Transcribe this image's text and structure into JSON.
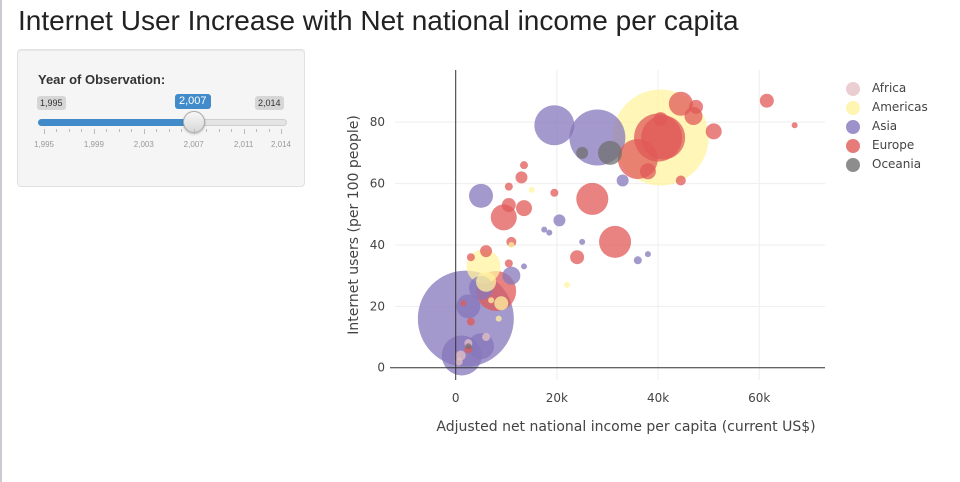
{
  "page": {
    "title": "Internet User Increase with Net national income per capita"
  },
  "slider": {
    "label": "Year of Observation:",
    "min_label": "1,995",
    "max_label": "2,014",
    "current_label": "2,007",
    "min": 1995,
    "max": 2014,
    "value": 2007,
    "tick_labels": [
      {
        "label": "1,995",
        "value": 1995
      },
      {
        "label": "1,999",
        "value": 1999
      },
      {
        "label": "2,003",
        "value": 2003
      },
      {
        "label": "2,007",
        "value": 2007
      },
      {
        "label": "2,011",
        "value": 2011
      },
      {
        "label": "2,014",
        "value": 2014
      }
    ],
    "accent_color": "#428bca"
  },
  "chart_data": {
    "type": "scatter",
    "xlabel": "Adjusted net national income per capita (current US$)",
    "ylabel": "Internet users (per 100 people)",
    "xlim": [
      -12000,
      73000
    ],
    "ylim": [
      -4,
      97
    ],
    "x_ticks": [
      {
        "value": 0,
        "label": "0"
      },
      {
        "value": 20000,
        "label": "20k"
      },
      {
        "value": 40000,
        "label": "40k"
      },
      {
        "value": 60000,
        "label": "60k"
      }
    ],
    "y_ticks": [
      {
        "value": 0,
        "label": "0"
      },
      {
        "value": 20,
        "label": "20"
      },
      {
        "value": 40,
        "label": "40"
      },
      {
        "value": 60,
        "label": "60"
      },
      {
        "value": 80,
        "label": "80"
      }
    ],
    "grid": true,
    "legend_position": "right",
    "bubble_size": "population",
    "series": [
      {
        "name": "Africa",
        "color": "#e6c2c6",
        "points": [
          {
            "x": 1000,
            "y": 4,
            "size": 5
          },
          {
            "x": 2500,
            "y": 8,
            "size": 4
          },
          {
            "x": 6000,
            "y": 10,
            "size": 4
          },
          {
            "x": 600,
            "y": 2,
            "size": 4
          }
        ]
      },
      {
        "name": "Americas",
        "color": "#fff3a0",
        "points": [
          {
            "x": 40500,
            "y": 75,
            "size": 48
          },
          {
            "x": 5500,
            "y": 33,
            "size": 17
          },
          {
            "x": 6000,
            "y": 28,
            "size": 10
          },
          {
            "x": 9000,
            "y": 21,
            "size": 7
          },
          {
            "x": 22000,
            "y": 27,
            "size": 3
          },
          {
            "x": 15000,
            "y": 58,
            "size": 3
          },
          {
            "x": 11000,
            "y": 40,
            "size": 3
          },
          {
            "x": 8500,
            "y": 16,
            "size": 3
          },
          {
            "x": 7000,
            "y": 22,
            "size": 3
          }
        ]
      },
      {
        "name": "Asia",
        "color": "#8577bb",
        "points": [
          {
            "x": 2000,
            "y": 16,
            "size": 48
          },
          {
            "x": 1200,
            "y": 4,
            "size": 20
          },
          {
            "x": 28000,
            "y": 75,
            "size": 28
          },
          {
            "x": 19500,
            "y": 79,
            "size": 20
          },
          {
            "x": 5000,
            "y": 7,
            "size": 13
          },
          {
            "x": 5000,
            "y": 26,
            "size": 12
          },
          {
            "x": 11000,
            "y": 30,
            "size": 9
          },
          {
            "x": 5000,
            "y": 56,
            "size": 12
          },
          {
            "x": 2500,
            "y": 20,
            "size": 12
          },
          {
            "x": 33000,
            "y": 61,
            "size": 6
          },
          {
            "x": 36000,
            "y": 35,
            "size": 4
          },
          {
            "x": 38000,
            "y": 37,
            "size": 3
          },
          {
            "x": 25000,
            "y": 41,
            "size": 3
          },
          {
            "x": 17500,
            "y": 45,
            "size": 3
          },
          {
            "x": 13500,
            "y": 33,
            "size": 3
          },
          {
            "x": 20500,
            "y": 48,
            "size": 6
          },
          {
            "x": 18500,
            "y": 44,
            "size": 3
          }
        ]
      },
      {
        "name": "Europe",
        "color": "#e05a58",
        "points": [
          {
            "x": 40000,
            "y": 75,
            "size": 24
          },
          {
            "x": 36000,
            "y": 68,
            "size": 20
          },
          {
            "x": 41000,
            "y": 75,
            "size": 22
          },
          {
            "x": 8000,
            "y": 25,
            "size": 20
          },
          {
            "x": 27000,
            "y": 55,
            "size": 16
          },
          {
            "x": 31500,
            "y": 41,
            "size": 16
          },
          {
            "x": 9500,
            "y": 49,
            "size": 13
          },
          {
            "x": 44500,
            "y": 86,
            "size": 12
          },
          {
            "x": 38000,
            "y": 64,
            "size": 8
          },
          {
            "x": 47000,
            "y": 82,
            "size": 9
          },
          {
            "x": 51000,
            "y": 77,
            "size": 8
          },
          {
            "x": 47500,
            "y": 85,
            "size": 7
          },
          {
            "x": 61500,
            "y": 87,
            "size": 7
          },
          {
            "x": 67000,
            "y": 79,
            "size": 3
          },
          {
            "x": 44500,
            "y": 61,
            "size": 5
          },
          {
            "x": 40500,
            "y": 81,
            "size": 7
          },
          {
            "x": 24000,
            "y": 36,
            "size": 7
          },
          {
            "x": 10500,
            "y": 53,
            "size": 7
          },
          {
            "x": 13500,
            "y": 52,
            "size": 8
          },
          {
            "x": 13000,
            "y": 62,
            "size": 6
          },
          {
            "x": 10500,
            "y": 59,
            "size": 4
          },
          {
            "x": 13500,
            "y": 66,
            "size": 4
          },
          {
            "x": 19500,
            "y": 57,
            "size": 4
          },
          {
            "x": 11000,
            "y": 41,
            "size": 5
          },
          {
            "x": 10500,
            "y": 34,
            "size": 4
          },
          {
            "x": 6000,
            "y": 38,
            "size": 6
          },
          {
            "x": 3000,
            "y": 36,
            "size": 4
          },
          {
            "x": 3000,
            "y": 15,
            "size": 4
          },
          {
            "x": 1500,
            "y": 21,
            "size": 3
          },
          {
            "x": 2500,
            "y": 6,
            "size": 4
          }
        ]
      },
      {
        "name": "Oceania",
        "color": "#707070",
        "points": [
          {
            "x": 30500,
            "y": 70,
            "size": 12
          },
          {
            "x": 25000,
            "y": 70,
            "size": 6
          },
          {
            "x": 2500,
            "y": 7,
            "size": 3
          }
        ]
      }
    ]
  }
}
